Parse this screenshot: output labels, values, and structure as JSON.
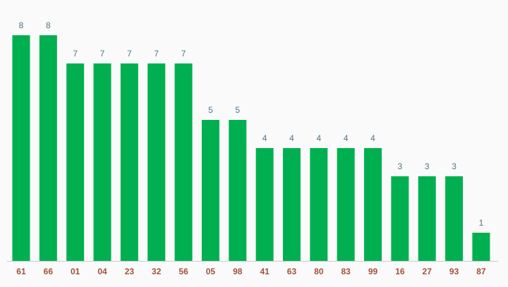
{
  "chart_data": {
    "type": "bar",
    "categories": [
      "61",
      "66",
      "01",
      "04",
      "23",
      "32",
      "56",
      "05",
      "98",
      "41",
      "63",
      "80",
      "83",
      "99",
      "16",
      "27",
      "93",
      "87"
    ],
    "values": [
      8,
      8,
      7,
      7,
      7,
      7,
      7,
      5,
      5,
      4,
      4,
      4,
      4,
      4,
      3,
      3,
      3,
      1
    ],
    "color": "#00b050"
  }
}
